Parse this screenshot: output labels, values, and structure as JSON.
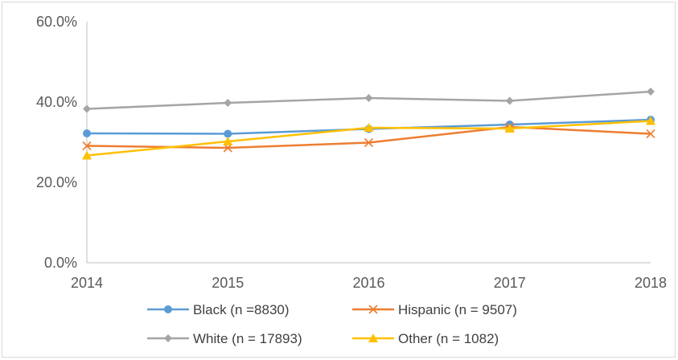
{
  "chart_data": {
    "type": "line",
    "x": [
      "2014",
      "2015",
      "2016",
      "2017",
      "2018"
    ],
    "ylim": [
      0,
      60
    ],
    "yticks": [
      0,
      20,
      40,
      60
    ],
    "ytick_labels": [
      "0.0%",
      "20.0%",
      "40.0%",
      "60.0%"
    ],
    "grid": false,
    "legend_position": "bottom",
    "series": [
      {
        "name": "Black (n =8830)",
        "values": [
          32.2,
          32.1,
          33.3,
          34.4,
          35.6
        ],
        "color": "#5b9bd5",
        "marker": "circle"
      },
      {
        "name": "Hispanic (n = 9507)",
        "values": [
          29.1,
          28.6,
          29.9,
          33.8,
          32.1
        ],
        "color": "#ed7d31",
        "marker": "x"
      },
      {
        "name": "White (n = 17893)",
        "values": [
          38.3,
          39.8,
          41.0,
          40.3,
          42.6
        ],
        "color": "#a5a5a5",
        "marker": "diamond"
      },
      {
        "name": "Other (n = 1082)",
        "values": [
          26.7,
          30.2,
          33.6,
          33.4,
          35.3
        ],
        "color": "#ffc000",
        "marker": "triangle"
      }
    ]
  }
}
